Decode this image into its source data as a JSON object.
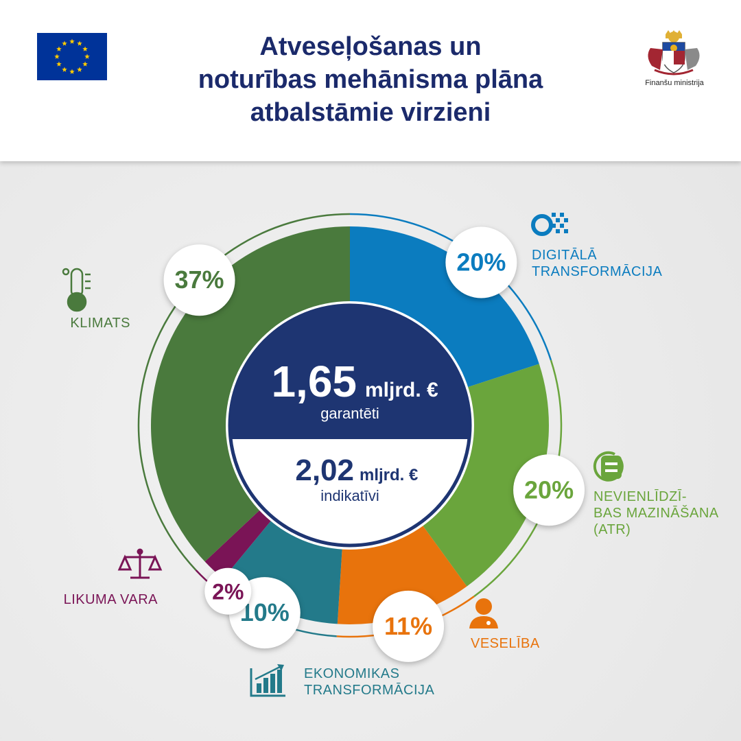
{
  "header": {
    "title_lines": [
      "Atveseļošanas un",
      "noturības mehānisma plāna",
      "atbalstāmie virzieni"
    ],
    "ministry_name": "Finanšu ministrija"
  },
  "center": {
    "guaranteed_amount": "1,65",
    "guaranteed_unit": "mljrd. €",
    "guaranteed_label": "garantēti",
    "indicative_amount": "2,02",
    "indicative_unit": "mljrd. €",
    "indicative_label": "indikatīvi"
  },
  "colors": {
    "navy": "#1e3572",
    "climate": "#4a7a3d",
    "digital": "#0b7cbf",
    "inequality": "#6aa53c",
    "health": "#e8730c",
    "economy": "#237a8a",
    "law": "#7a1456"
  },
  "icons": {
    "climate": "thermometer-earth-icon",
    "digital": "gear-pixels-icon",
    "inequality": "equals-circle-icon",
    "health": "doctor-icon",
    "economy": "bar-chart-growth-icon",
    "law": "scales-icon"
  },
  "chart_data": {
    "type": "pie",
    "title": "Atveseļošanas un noturības mehānisma plāna atbalstāmie virzieni",
    "unit": "%",
    "categories": [
      "DIGITĀLĀ TRANSFORMĀCIJA",
      "NEVIENLĪDZĪBAS MAZINĀŠANA (ATR)",
      "VESELĪBA",
      "EKONOMIKAS TRANSFORMĀCIJA",
      "LIKUMA VARA",
      "KLIMATS"
    ],
    "values": [
      20,
      20,
      11,
      10,
      2,
      37
    ],
    "label_lines": [
      [
        "DIGITĀLĀ",
        "TRANSFORMĀCIJA"
      ],
      [
        "NEVIENLĪDZĪ-",
        "BAS MAZINĀŠANA",
        "(ATR)"
      ],
      [
        "VESELĪBA"
      ],
      [
        "EKONOMIKAS",
        "TRANSFORMĀCIJA"
      ],
      [
        "LIKUMA VARA"
      ],
      [
        "KLIMATS"
      ]
    ],
    "percent_labels": [
      "20%",
      "20%",
      "11%",
      "10%",
      "2%",
      "37%"
    ],
    "colors": [
      "#0b7cbf",
      "#6aa53c",
      "#e8730c",
      "#237a8a",
      "#7a1456",
      "#4a7a3d"
    ]
  }
}
